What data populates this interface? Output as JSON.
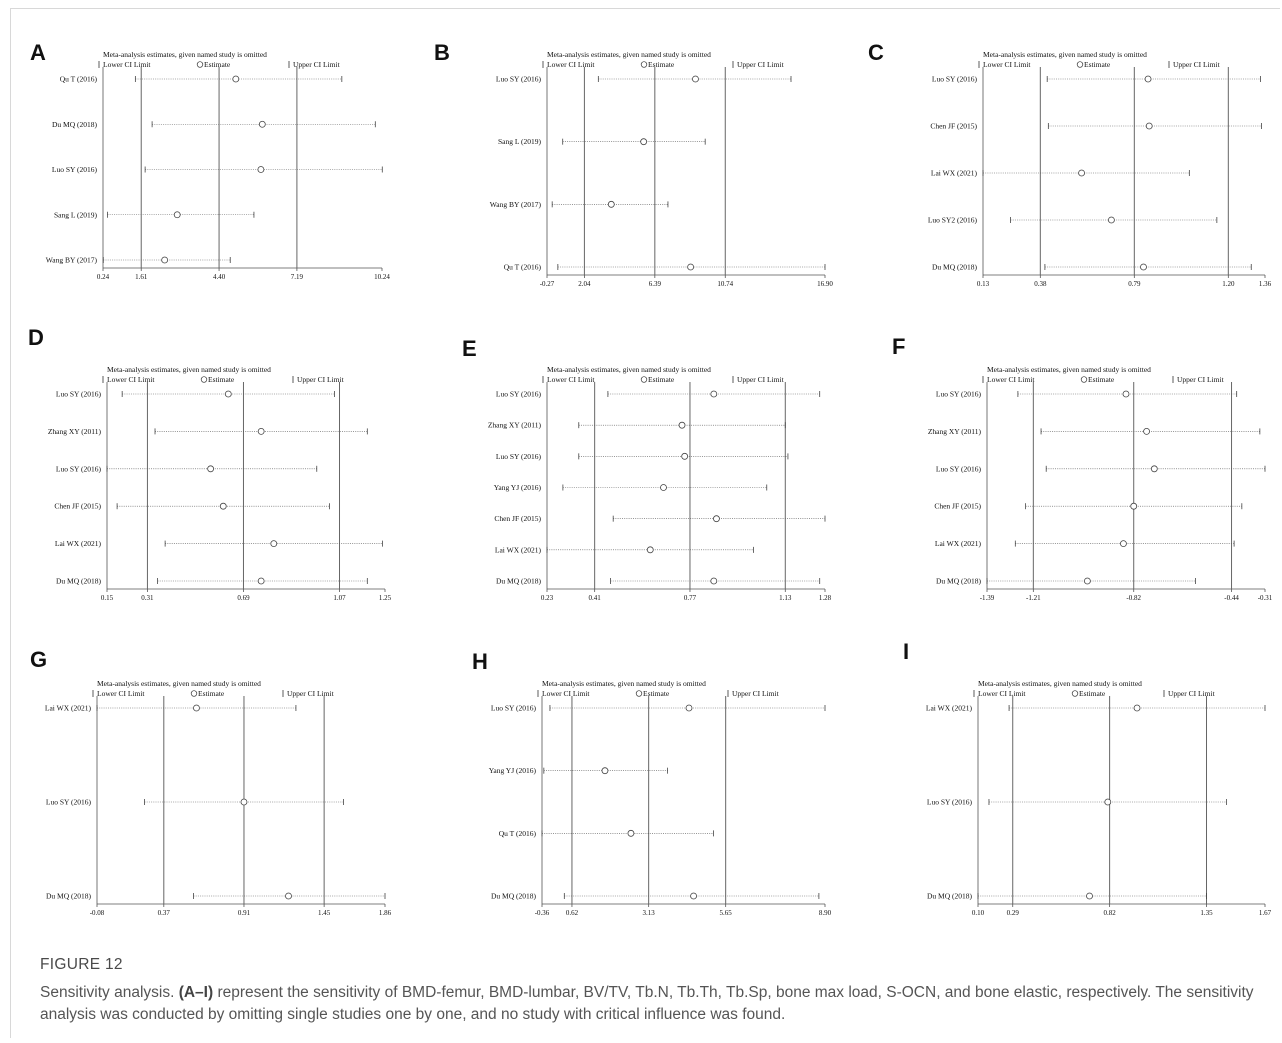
{
  "figure": {
    "label": "FIGURE 12",
    "caption_lead": "Sensitivity analysis.",
    "caption_range": "(A–I)",
    "caption_rest": "represent the sensitivity of BMD-femur, BMD-lumbar, BV/TV, Tb.N, Tb.Th, Tb.Sp, bone max load, S-OCN, and bone elastic, respectively. The sensitivity analysis was conducted by omitting single studies one by one, and no study with critical influence was found."
  },
  "legend": {
    "title": "Meta-analysis estimates, given named study is omitted",
    "lower": "Lower CI Limit",
    "estimate": "Estimate",
    "upper": "Upper CI Limit"
  },
  "chart_data": [
    {
      "panel": "A",
      "type": "scatter",
      "xlim": [
        0.24,
        10.24
      ],
      "ticks": [
        "0.24",
        "1.61",
        "4.40",
        "7.19",
        "10.24"
      ],
      "ref": [
        1.61,
        4.4,
        7.19
      ],
      "studies": [
        {
          "name": "Qu T (2016)",
          "est": 5.0,
          "lo": 1.4,
          "hi": 8.8
        },
        {
          "name": "Du MQ (2018)",
          "est": 5.95,
          "lo": 2.0,
          "hi": 10.0
        },
        {
          "name": "Luo SY (2016)",
          "est": 5.9,
          "lo": 1.75,
          "hi": 10.25
        },
        {
          "name": "Sang L (2019)",
          "est": 2.9,
          "lo": 0.4,
          "hi": 5.65
        },
        {
          "name": "Wang BY (2017)",
          "est": 2.45,
          "lo": 0.25,
          "hi": 4.8
        }
      ]
    },
    {
      "panel": "B",
      "type": "scatter",
      "xlim": [
        -0.27,
        16.9
      ],
      "ticks": [
        "-0.27",
        "2.04",
        "6.39",
        "10.74",
        "16.90"
      ],
      "ref": [
        2.04,
        6.39,
        10.74
      ],
      "studies": [
        {
          "name": "Luo SY (2016)",
          "est": 8.9,
          "lo": 2.9,
          "hi": 14.8
        },
        {
          "name": "Sang L (2019)",
          "est": 5.7,
          "lo": 0.7,
          "hi": 9.5
        },
        {
          "name": "Wang BY (2017)",
          "est": 3.7,
          "lo": 0.05,
          "hi": 7.2
        },
        {
          "name": "Qu T (2016)",
          "est": 8.6,
          "lo": 0.4,
          "hi": 16.9
        }
      ]
    },
    {
      "panel": "C",
      "type": "scatter",
      "xlim": [
        0.13,
        1.36
      ],
      "ticks": [
        "0.13",
        "0.38",
        "0.79",
        "1.20",
        "1.36"
      ],
      "ref": [
        0.38,
        0.79,
        1.2
      ],
      "studies": [
        {
          "name": "Luo SY (2016)",
          "est": 0.85,
          "lo": 0.41,
          "hi": 1.34
        },
        {
          "name": "Chen JF (2015)",
          "est": 0.855,
          "lo": 0.415,
          "hi": 1.345
        },
        {
          "name": "Lai WX (2021)",
          "est": 0.56,
          "lo": 0.13,
          "hi": 1.03
        },
        {
          "name": "Luo SY2 (2016)",
          "est": 0.69,
          "lo": 0.25,
          "hi": 1.15
        },
        {
          "name": "Du MQ (2018)",
          "est": 0.83,
          "lo": 0.4,
          "hi": 1.3
        }
      ]
    },
    {
      "panel": "D",
      "type": "scatter",
      "xlim": [
        0.15,
        1.25
      ],
      "ticks": [
        "0.15",
        "0.31",
        "0.69",
        "1.07",
        "1.25"
      ],
      "ref": [
        0.31,
        0.69,
        1.07
      ],
      "studies": [
        {
          "name": "Luo SY (2016)",
          "est": 0.63,
          "lo": 0.21,
          "hi": 1.05
        },
        {
          "name": "Zhang XY (2011)",
          "est": 0.76,
          "lo": 0.34,
          "hi": 1.18
        },
        {
          "name": "Luo SY (2016)",
          "est": 0.56,
          "lo": 0.15,
          "hi": 0.98
        },
        {
          "name": "Chen JF (2015)",
          "est": 0.61,
          "lo": 0.19,
          "hi": 1.03
        },
        {
          "name": "Lai WX (2021)",
          "est": 0.81,
          "lo": 0.38,
          "hi": 1.24
        },
        {
          "name": "Du MQ (2018)",
          "est": 0.76,
          "lo": 0.35,
          "hi": 1.18
        }
      ]
    },
    {
      "panel": "E",
      "type": "scatter",
      "xlim": [
        0.23,
        1.28
      ],
      "ticks": [
        "0.23",
        "0.41",
        "0.77",
        "1.13",
        "1.28"
      ],
      "ref": [
        0.41,
        0.77,
        1.13
      ],
      "studies": [
        {
          "name": "Luo SY (2016)",
          "est": 0.86,
          "lo": 0.46,
          "hi": 1.26
        },
        {
          "name": "Zhang XY (2011)",
          "est": 0.74,
          "lo": 0.35,
          "hi": 1.13
        },
        {
          "name": "Luo SY (2016)",
          "est": 0.75,
          "lo": 0.35,
          "hi": 1.14
        },
        {
          "name": "Yang YJ (2016)",
          "est": 0.67,
          "lo": 0.29,
          "hi": 1.06
        },
        {
          "name": "Chen JF (2015)",
          "est": 0.87,
          "lo": 0.48,
          "hi": 1.28
        },
        {
          "name": "Lai WX (2021)",
          "est": 0.62,
          "lo": 0.23,
          "hi": 1.01
        },
        {
          "name": "Du MQ (2018)",
          "est": 0.86,
          "lo": 0.47,
          "hi": 1.26
        }
      ]
    },
    {
      "panel": "F",
      "type": "scatter",
      "xlim": [
        -1.39,
        -0.31
      ],
      "ticks": [
        "-1.39",
        "-1.21",
        "-0.82",
        "-0.44",
        "-0.31"
      ],
      "ref": [
        -1.21,
        -0.82,
        -0.44
      ],
      "studies": [
        {
          "name": "Luo SY (2016)",
          "est": -0.85,
          "lo": -1.27,
          "hi": -0.42
        },
        {
          "name": "Zhang XY (2011)",
          "est": -0.77,
          "lo": -1.18,
          "hi": -0.33
        },
        {
          "name": "Luo SY (2016)",
          "est": -0.74,
          "lo": -1.16,
          "hi": -0.31
        },
        {
          "name": "Chen JF (2015)",
          "est": -0.82,
          "lo": -1.24,
          "hi": -0.4
        },
        {
          "name": "Lai WX (2021)",
          "est": -0.86,
          "lo": -1.28,
          "hi": -0.43
        },
        {
          "name": "Du MQ (2018)",
          "est": -1.0,
          "lo": -1.39,
          "hi": -0.58
        }
      ]
    },
    {
      "panel": "G",
      "type": "scatter",
      "xlim": [
        -0.08,
        1.86
      ],
      "ticks": [
        "-0.08",
        "0.37",
        "0.91",
        "1.45",
        "1.86"
      ],
      "ref": [
        0.37,
        0.91,
        1.45
      ],
      "studies": [
        {
          "name": "Lai WX (2021)",
          "est": 0.59,
          "lo": -0.08,
          "hi": 1.26
        },
        {
          "name": "Luo SY (2016)",
          "est": 0.91,
          "lo": 0.24,
          "hi": 1.58
        },
        {
          "name": "Du MQ (2018)",
          "est": 1.21,
          "lo": 0.57,
          "hi": 1.86
        }
      ]
    },
    {
      "panel": "H",
      "type": "scatter",
      "xlim": [
        -0.36,
        8.9
      ],
      "ticks": [
        "-0.36",
        "0.62",
        "3.13",
        "5.65",
        "8.90"
      ],
      "ref": [
        0.62,
        3.13,
        5.65
      ],
      "studies": [
        {
          "name": "Luo SY (2016)",
          "est": 4.45,
          "lo": -0.1,
          "hi": 8.9
        },
        {
          "name": "Yang YJ (2016)",
          "est": 1.7,
          "lo": -0.3,
          "hi": 3.75
        },
        {
          "name": "Qu T (2016)",
          "est": 2.55,
          "lo": -0.36,
          "hi": 5.25
        },
        {
          "name": "Du MQ (2018)",
          "est": 4.6,
          "lo": 0.37,
          "hi": 8.7
        }
      ]
    },
    {
      "panel": "I",
      "type": "scatter",
      "xlim": [
        0.1,
        1.67
      ],
      "ticks": [
        "0.10",
        "0.29",
        "0.82",
        "1.35",
        "1.67"
      ],
      "ref": [
        0.29,
        0.82,
        1.35
      ],
      "studies": [
        {
          "name": "Lai WX (2021)",
          "est": 0.97,
          "lo": 0.27,
          "hi": 1.67
        },
        {
          "name": "Luo SY (2016)",
          "est": 0.81,
          "lo": 0.16,
          "hi": 1.46
        },
        {
          "name": "Du MQ (2018)",
          "est": 0.71,
          "lo": 0.1,
          "hi": 1.35
        }
      ]
    }
  ]
}
